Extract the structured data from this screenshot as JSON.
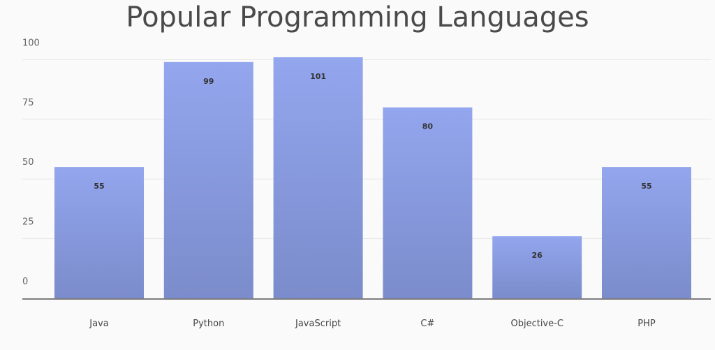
{
  "chart_data": {
    "type": "bar",
    "title": "Popular Programming Languages",
    "categories": [
      "Java",
      "Python",
      "JavaScript",
      "C#",
      "Objective-C",
      "PHP"
    ],
    "values": [
      55,
      99,
      101,
      80,
      26,
      55
    ],
    "yticks": [
      0,
      25,
      50,
      75,
      100
    ],
    "ylim": [
      0,
      100
    ],
    "xlabel": "",
    "ylabel": "",
    "grid": true,
    "data_labels": true,
    "colors": {
      "bar_top": "#93a6ee",
      "bar_bottom": "#7b8ccb",
      "grid": "#e6e6e6",
      "axis": "#555555",
      "label": "#333333"
    }
  }
}
